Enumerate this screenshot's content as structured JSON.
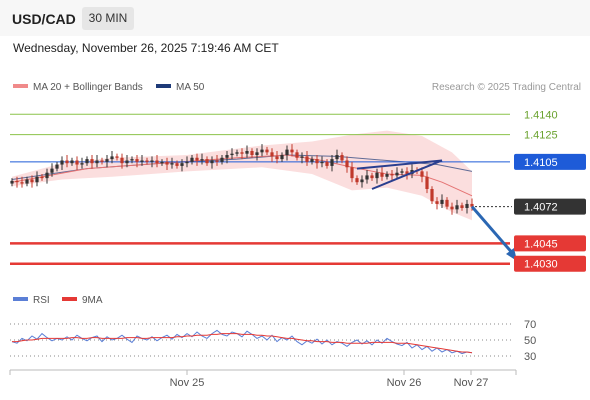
{
  "header": {
    "symbol": "USD/CAD",
    "interval": "30 MIN"
  },
  "datetime": "Wednesday, November 26, 2025 7:19:46 AM CET",
  "legend": {
    "ma20_label": "MA 20 + Bollinger Bands",
    "ma50_label": "MA 50",
    "credit": "Research © 2025 Trading Central"
  },
  "rsi_legend": {
    "rsi_label": "RSI",
    "ma9_label": "9MA"
  },
  "colors": {
    "up_candle": "#333333",
    "down_candle": "#c0392b",
    "resistance": "#8bc34a",
    "support": "#e53935",
    "pivot": "#1e5bd8",
    "bollinger": "#f8c8c8",
    "ma20": "#e57373",
    "ma50": "#1e3a78",
    "rsi": "#5b7fd6",
    "rsi_ma": "#e53935"
  },
  "chart_data": {
    "type": "candlestick",
    "ylim": [
      1.4018,
      1.4152
    ],
    "x_labels": [
      "Nov 25",
      "Nov 26",
      "Nov 27"
    ],
    "last_price": "1.4072",
    "levels": [
      {
        "label": "1.4140",
        "value": 1.414,
        "kind": "resistance"
      },
      {
        "label": "1.4125",
        "value": 1.4125,
        "kind": "resistance"
      },
      {
        "label": "1.4105",
        "value": 1.4105,
        "kind": "pivot"
      },
      {
        "label": "1.4045",
        "value": 1.4045,
        "kind": "support"
      },
      {
        "label": "1.4030",
        "value": 1.403,
        "kind": "support"
      }
    ],
    "closes": [
      1.4091,
      1.409,
      1.4089,
      1.4092,
      1.409,
      1.4094,
      1.4093,
      1.4097,
      1.41,
      1.4103,
      1.4106,
      1.4104,
      1.4106,
      1.4103,
      1.4104,
      1.4107,
      1.4104,
      1.4106,
      1.4105,
      1.4107,
      1.4109,
      1.4108,
      1.4104,
      1.4106,
      1.4107,
      1.4105,
      1.4106,
      1.4105,
      1.4106,
      1.4104,
      1.4105,
      1.4103,
      1.4104,
      1.4102,
      1.4104,
      1.4105,
      1.4108,
      1.4106,
      1.4107,
      1.4104,
      1.4106,
      1.4105,
      1.4108,
      1.411,
      1.4111,
      1.4112,
      1.4111,
      1.4113,
      1.411,
      1.4112,
      1.4114,
      1.4112,
      1.4109,
      1.4107,
      1.411,
      1.4114,
      1.4112,
      1.4108,
      1.4109,
      1.4105,
      1.4107,
      1.4104,
      1.4105,
      1.4102,
      1.4107,
      1.411,
      1.4106,
      1.4101,
      1.4093,
      1.409,
      1.4092,
      1.4095,
      1.4093,
      1.4097,
      1.4094,
      1.4096,
      1.4095,
      1.4097,
      1.4098,
      1.4096,
      1.4099,
      1.4098,
      1.4094,
      1.4085,
      1.4076,
      1.4074,
      1.4077,
      1.4072,
      1.407,
      1.4073,
      1.4071,
      1.4074,
      1.4072
    ],
    "ma20_points": [
      [
        0,
        1.409
      ],
      [
        15,
        1.41
      ],
      [
        30,
        1.4104
      ],
      [
        45,
        1.4108
      ],
      [
        55,
        1.411
      ],
      [
        62,
        1.4106
      ],
      [
        68,
        1.4101
      ],
      [
        75,
        1.4096
      ],
      [
        82,
        1.4095
      ],
      [
        86,
        1.409
      ],
      [
        92,
        1.408
      ]
    ],
    "bollinger_upper_points": [
      [
        0,
        1.4094
      ],
      [
        10,
        1.4104
      ],
      [
        20,
        1.4108
      ],
      [
        35,
        1.411
      ],
      [
        50,
        1.4117
      ],
      [
        60,
        1.412
      ],
      [
        68,
        1.4125
      ],
      [
        75,
        1.4128
      ],
      [
        82,
        1.4124
      ],
      [
        88,
        1.4112
      ],
      [
        92,
        1.4098
      ]
    ],
    "bollinger_lower_points": [
      [
        0,
        1.4087
      ],
      [
        10,
        1.4092
      ],
      [
        20,
        1.4094
      ],
      [
        35,
        1.4098
      ],
      [
        50,
        1.4101
      ],
      [
        60,
        1.4096
      ],
      [
        68,
        1.4084
      ],
      [
        75,
        1.4086
      ],
      [
        82,
        1.408
      ],
      [
        88,
        1.4068
      ],
      [
        92,
        1.4062
      ]
    ],
    "ma50_points": [
      [
        0,
        1.4092
      ],
      [
        15,
        1.41
      ],
      [
        30,
        1.4104
      ],
      [
        45,
        1.4107
      ],
      [
        55,
        1.411
      ],
      [
        65,
        1.4109
      ],
      [
        75,
        1.4106
      ],
      [
        85,
        1.4103
      ],
      [
        92,
        1.4098
      ]
    ],
    "trend_lines": [
      [
        [
          69,
          1.41
        ],
        [
          86,
          1.4106
        ]
      ],
      [
        [
          72,
          1.4085
        ],
        [
          86,
          1.4106
        ]
      ]
    ],
    "forecast_arrow": [
      [
        92,
        1.4072
      ],
      [
        101,
        1.4032
      ]
    ],
    "rsi": {
      "ylim": [
        20,
        80
      ],
      "ticks": [
        70,
        50,
        30
      ],
      "rsi_values": [
        48,
        46,
        52,
        49,
        55,
        51,
        58,
        53,
        49,
        52,
        50,
        54,
        50,
        56,
        52,
        49,
        53,
        55,
        48,
        54,
        50,
        52,
        56,
        51,
        47,
        55,
        52,
        50,
        54,
        49,
        53,
        56,
        51,
        57,
        53,
        58,
        54,
        60,
        55,
        52,
        58,
        62,
        57,
        55,
        60,
        58,
        54,
        61,
        57,
        52,
        55,
        50,
        56,
        48,
        53,
        50,
        55,
        48,
        44,
        49,
        46,
        51,
        45,
        50,
        44,
        48,
        46,
        42,
        47,
        50,
        45,
        49,
        44,
        50,
        46,
        52,
        48,
        45,
        43,
        47,
        40,
        44,
        38,
        42,
        36,
        40,
        35,
        38,
        34,
        36,
        33,
        35,
        34
      ],
      "ma9_values": [
        48,
        48,
        49,
        50,
        50,
        51,
        52,
        52,
        52,
        52,
        52,
        52,
        53,
        53,
        52,
        52,
        53,
        53,
        52,
        52,
        52,
        52,
        52,
        53,
        53,
        53,
        52,
        52,
        53,
        53,
        53,
        53,
        53,
        54,
        54,
        55,
        55,
        56,
        56,
        56,
        57,
        57,
        58,
        58,
        58,
        58,
        57,
        57,
        57,
        56,
        56,
        55,
        55,
        54,
        53,
        52,
        52,
        51,
        50,
        49,
        49,
        48,
        48,
        48,
        47,
        47,
        47,
        46,
        46,
        46,
        46,
        46,
        47,
        47,
        47,
        47,
        47,
        46,
        46,
        46,
        45,
        44,
        43,
        42,
        41,
        40,
        39,
        38,
        37,
        36,
        35,
        35,
        34
      ]
    }
  }
}
